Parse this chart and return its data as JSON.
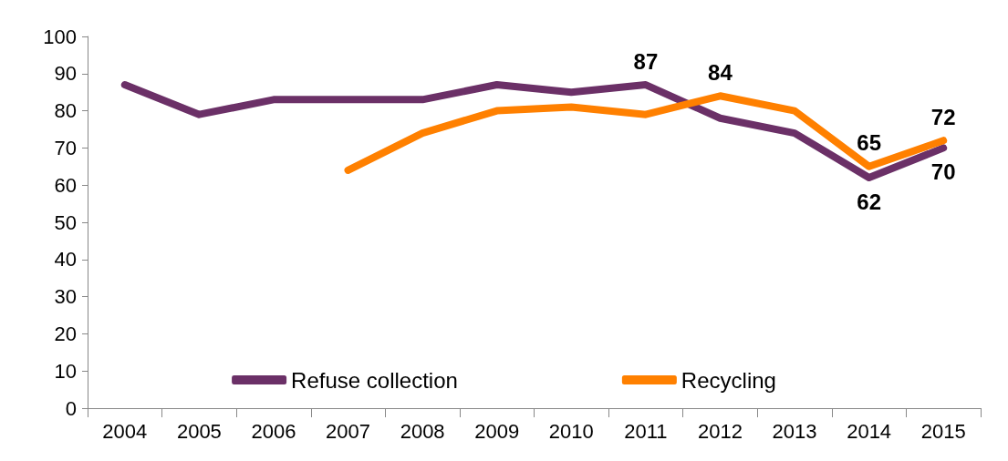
{
  "chart_data": {
    "type": "line",
    "categories": [
      "2004",
      "2005",
      "2006",
      "2007",
      "2008",
      "2009",
      "2010",
      "2011",
      "2012",
      "2013",
      "2014",
      "2015"
    ],
    "series": [
      {
        "name": "Refuse collection",
        "color": "#6b3067",
        "values": [
          87,
          79,
          83,
          83,
          83,
          87,
          85,
          87,
          78,
          74,
          62,
          70
        ],
        "value_labels": [
          null,
          null,
          null,
          null,
          null,
          null,
          null,
          "87",
          null,
          null,
          "62",
          "70"
        ]
      },
      {
        "name": "Recycling",
        "color": "#ff8000",
        "values": [
          null,
          null,
          null,
          64,
          74,
          80,
          81,
          79,
          84,
          80,
          65,
          72
        ],
        "value_labels": [
          null,
          null,
          null,
          null,
          null,
          null,
          null,
          null,
          "84",
          null,
          "65",
          "72"
        ]
      }
    ],
    "ylim": [
      0,
      100
    ],
    "yticks": [
      0,
      10,
      20,
      30,
      40,
      50,
      60,
      70,
      80,
      90,
      100
    ],
    "grid": false,
    "legend": "bottom",
    "marker": "none",
    "line_style": "solid"
  }
}
